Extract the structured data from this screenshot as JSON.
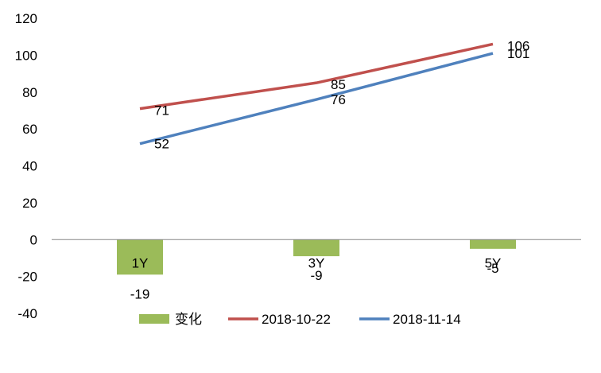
{
  "chart_data": {
    "type": "bar",
    "categories": [
      "1Y",
      "3Y",
      "5Y"
    ],
    "ylim": [
      -40,
      120
    ],
    "yticks": [
      -40,
      -20,
      0,
      20,
      40,
      60,
      80,
      100,
      120
    ],
    "grid": false,
    "legend_position": "bottom",
    "series": [
      {
        "name": "变化",
        "type": "bar",
        "color": "#9BBB59",
        "values": [
          -19,
          -9,
          -5
        ]
      },
      {
        "name": "2018-10-22",
        "type": "line",
        "color": "#C0504D",
        "values": [
          71,
          85,
          106
        ]
      },
      {
        "name": "2018-11-14",
        "type": "line",
        "color": "#4F81BD",
        "values": [
          52,
          76,
          101
        ]
      }
    ]
  }
}
